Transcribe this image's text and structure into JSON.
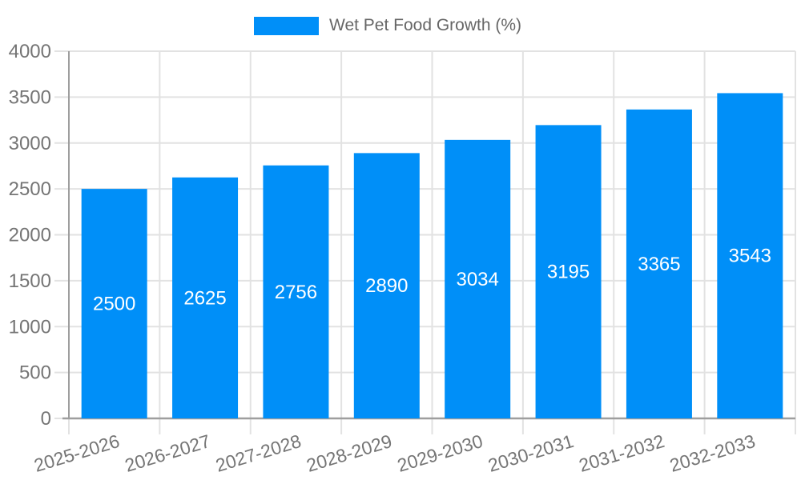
{
  "legend": {
    "label": "Wet Pet Food Growth (%)"
  },
  "colors": {
    "bar": "#008FF8",
    "legend_text": "#666666",
    "axis_label": "#757575",
    "grid": "#e2e2e2",
    "axis_line": "#9e9e9e",
    "value_label": "#ffffff"
  },
  "chart_data": {
    "type": "bar",
    "title": "",
    "xlabel": "",
    "ylabel": "",
    "categories": [
      "2025-2026",
      "2026-2027",
      "2027-2028",
      "2028-2029",
      "2029-2030",
      "2030-2031",
      "2031-2032",
      "2032-2033"
    ],
    "values": [
      2500,
      2625,
      2756,
      2890,
      3034,
      3195,
      3365,
      3543
    ],
    "series_name": "Wet Pet Food Growth (%)",
    "ylim": [
      0,
      4000
    ],
    "y_ticks": [
      0,
      500,
      1000,
      1500,
      2000,
      2500,
      3000,
      3500,
      4000
    ],
    "grid": true,
    "legend_position": "top-center",
    "bar_value_labels": "inside-center",
    "x_label_rotation_deg": -17
  }
}
